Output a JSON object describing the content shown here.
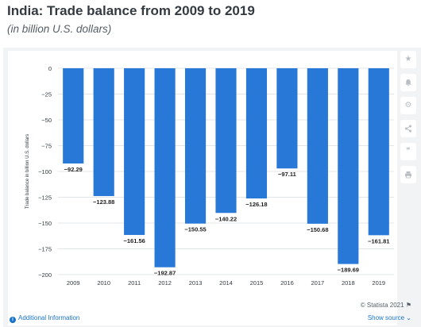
{
  "header": {
    "title": "India: Trade balance from 2009 to 2019",
    "subtitle": "(in billion U.S. dollars)"
  },
  "sidebar": {
    "icons": [
      "star-icon",
      "bell-icon",
      "gear-icon",
      "share-icon",
      "quote-icon",
      "print-icon"
    ]
  },
  "footer": {
    "credit": "© Statista 2021",
    "additional_info": "Additional Information",
    "show_source": "Show source"
  },
  "colors": {
    "bar": "#2878d8",
    "grid": "#e2e5e8",
    "axis_text": "#333a41",
    "label_text": "#222222"
  },
  "chart_data": {
    "type": "bar",
    "title": "India: Trade balance from 2009 to 2019",
    "subtitle": "(in billion U.S. dollars)",
    "ylabel": "Trade balance in billion U.S. dollars",
    "xlabel": "",
    "categories": [
      "2009",
      "2010",
      "2011",
      "2012",
      "2013",
      "2014",
      "2015",
      "2016",
      "2017",
      "2018",
      "2019"
    ],
    "values": [
      -92.29,
      -123.88,
      -161.56,
      -192.87,
      -150.55,
      -140.22,
      -126.18,
      -97.11,
      -150.68,
      -189.69,
      -161.81
    ],
    "value_labels": [
      "−92.29",
      "−123.88",
      "−161.56",
      "−192.87",
      "−150.55",
      "−140.22",
      "−126.18",
      "−97.11",
      "−150.68",
      "−189.69",
      "−161.81"
    ],
    "ylim": [
      -200,
      0
    ],
    "yticks": [
      0,
      -25,
      -50,
      -75,
      -100,
      -125,
      -150,
      -175,
      -200
    ],
    "ytick_labels": [
      "0",
      "−25",
      "−50",
      "−75",
      "−100",
      "−125",
      "−150",
      "−175",
      "−200"
    ],
    "grid": true,
    "legend": false
  }
}
